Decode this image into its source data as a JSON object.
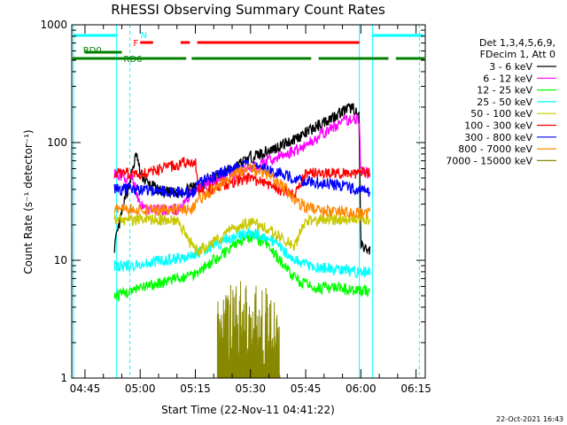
{
  "chart_data": {
    "type": "line",
    "title": "RHESSI Observing Summary Count Rates",
    "xlabel": "Start Time (22-Nov-11 04:41:22)",
    "ylabel": "Count Rate (s⁻¹ detector⁻¹)",
    "yscale": "log",
    "ylim": [
      1,
      1000
    ],
    "xlim_minutes": [
      41.4,
      137.5
    ],
    "x_ticks": [
      {
        "label": "04:45",
        "t": 45
      },
      {
        "label": "05:00",
        "t": 60
      },
      {
        "label": "05:15",
        "t": 75
      },
      {
        "label": "05:30",
        "t": 90
      },
      {
        "label": "05:45",
        "t": 105
      },
      {
        "label": "06:00",
        "t": 120
      },
      {
        "label": "06:15",
        "t": 135
      }
    ],
    "y_ticks": [
      {
        "label": "1",
        "v": 1
      },
      {
        "label": "10",
        "v": 10
      },
      {
        "label": "100",
        "v": 100
      },
      {
        "label": "1000",
        "v": 1000
      }
    ],
    "legend_header": [
      "Det 1,3,4,5,6,9,",
      "FDecim 1, Att 0"
    ],
    "series": [
      {
        "name": "3 - 6 keV",
        "color": "#000000",
        "values": [
          [
            53,
            13
          ],
          [
            55,
            25
          ],
          [
            58,
            60
          ],
          [
            59,
            80
          ],
          [
            60,
            55
          ],
          [
            62,
            45
          ],
          [
            66,
            38
          ],
          [
            70,
            37
          ],
          [
            75,
            42
          ],
          [
            80,
            50
          ],
          [
            85,
            60
          ],
          [
            90,
            75
          ],
          [
            95,
            85
          ],
          [
            100,
            100
          ],
          [
            105,
            120
          ],
          [
            110,
            150
          ],
          [
            115,
            185
          ],
          [
            118,
            200
          ],
          [
            119.5,
            160
          ],
          [
            120,
            13
          ],
          [
            122.5,
            12
          ]
        ]
      },
      {
        "name": "6 - 12 keV",
        "color": "#ff00ff",
        "values": [
          [
            53,
            55
          ],
          [
            58,
            48
          ],
          [
            60,
            30
          ],
          [
            62,
            27
          ],
          [
            66,
            27
          ],
          [
            70,
            27
          ],
          [
            72,
            30
          ],
          [
            75,
            40
          ],
          [
            78,
            45
          ],
          [
            82,
            50
          ],
          [
            86,
            55
          ],
          [
            90,
            60
          ],
          [
            95,
            70
          ],
          [
            100,
            80
          ],
          [
            105,
            95
          ],
          [
            110,
            120
          ],
          [
            115,
            150
          ],
          [
            118,
            160
          ],
          [
            119.5,
            160
          ],
          [
            120,
            55
          ],
          [
            122.5,
            55
          ]
        ]
      },
      {
        "name": "12 - 25 keV",
        "color": "#00ff00",
        "values": [
          [
            53,
            5
          ],
          [
            58,
            5.5
          ],
          [
            62,
            6
          ],
          [
            66,
            6.5
          ],
          [
            70,
            7
          ],
          [
            74,
            7.5
          ],
          [
            78,
            9
          ],
          [
            82,
            11
          ],
          [
            86,
            14
          ],
          [
            90,
            16
          ],
          [
            94,
            14
          ],
          [
            98,
            10
          ],
          [
            102,
            7
          ],
          [
            106,
            6
          ],
          [
            110,
            5.8
          ],
          [
            114,
            5.8
          ],
          [
            118,
            5.5
          ],
          [
            122.5,
            5.5
          ]
        ]
      },
      {
        "name": "25 - 50 keV",
        "color": "#00ffff",
        "values": [
          [
            53,
            9
          ],
          [
            58,
            9
          ],
          [
            62,
            9.5
          ],
          [
            66,
            10
          ],
          [
            70,
            10.5
          ],
          [
            74,
            11
          ],
          [
            78,
            12.5
          ],
          [
            82,
            14
          ],
          [
            86,
            16
          ],
          [
            90,
            17
          ],
          [
            94,
            16
          ],
          [
            98,
            13
          ],
          [
            102,
            10
          ],
          [
            106,
            9
          ],
          [
            110,
            8.5
          ],
          [
            114,
            8.5
          ],
          [
            118,
            8
          ],
          [
            122.5,
            8
          ]
        ]
      },
      {
        "name": "50 - 100 keV",
        "color": "#c8c800",
        "values": [
          [
            53,
            22
          ],
          [
            58,
            22
          ],
          [
            62,
            22
          ],
          [
            66,
            22
          ],
          [
            70,
            22
          ],
          [
            75,
            12
          ],
          [
            78,
            13
          ],
          [
            82,
            16
          ],
          [
            86,
            19
          ],
          [
            90,
            21
          ],
          [
            94,
            19
          ],
          [
            98,
            16
          ],
          [
            102,
            13
          ],
          [
            105,
            22
          ],
          [
            110,
            22
          ],
          [
            115,
            22
          ],
          [
            118,
            22
          ],
          [
            122.5,
            22
          ]
        ]
      },
      {
        "name": "100 - 300 keV",
        "color": "#ff0000",
        "values": [
          [
            53,
            55
          ],
          [
            58,
            55
          ],
          [
            60,
            55
          ],
          [
            62,
            55
          ],
          [
            66,
            60
          ],
          [
            70,
            65
          ],
          [
            75,
            70
          ],
          [
            76,
            38
          ],
          [
            79,
            40
          ],
          [
            83,
            44
          ],
          [
            87,
            48
          ],
          [
            90,
            50
          ],
          [
            94,
            45
          ],
          [
            98,
            40
          ],
          [
            102,
            35
          ],
          [
            105,
            55
          ],
          [
            110,
            55
          ],
          [
            115,
            55
          ],
          [
            118,
            55
          ],
          [
            122.5,
            55
          ]
        ]
      },
      {
        "name": "300 - 800 keV",
        "color": "#0000ff",
        "values": [
          [
            53,
            40
          ],
          [
            58,
            40
          ],
          [
            62,
            39
          ],
          [
            66,
            39
          ],
          [
            70,
            38
          ],
          [
            74,
            37
          ],
          [
            76,
            45
          ],
          [
            79,
            50
          ],
          [
            83,
            57
          ],
          [
            87,
            62
          ],
          [
            90,
            65
          ],
          [
            94,
            60
          ],
          [
            98,
            55
          ],
          [
            102,
            50
          ],
          [
            105,
            47
          ],
          [
            110,
            45
          ],
          [
            115,
            43
          ],
          [
            118,
            41
          ],
          [
            122.5,
            38
          ]
        ]
      },
      {
        "name": "800 - 7000 keV",
        "color": "#ff8800",
        "values": [
          [
            53,
            27
          ],
          [
            58,
            27
          ],
          [
            62,
            27
          ],
          [
            66,
            27
          ],
          [
            70,
            27
          ],
          [
            74,
            27
          ],
          [
            76,
            33
          ],
          [
            79,
            38
          ],
          [
            83,
            48
          ],
          [
            87,
            56
          ],
          [
            90,
            60
          ],
          [
            94,
            55
          ],
          [
            98,
            45
          ],
          [
            102,
            33
          ],
          [
            105,
            28
          ],
          [
            110,
            26
          ],
          [
            115,
            26
          ],
          [
            118,
            25
          ],
          [
            122.5,
            25
          ]
        ]
      },
      {
        "name": "7000 - 15000 keV",
        "color": "#888800",
        "values": [
          [
            81,
            2
          ],
          [
            83,
            2.5
          ],
          [
            85,
            2.9
          ],
          [
            88,
            3
          ],
          [
            90,
            3
          ],
          [
            93,
            2.9
          ],
          [
            96,
            2.5
          ],
          [
            98,
            2
          ]
        ]
      }
    ],
    "segment_bars": [
      {
        "label": "N",
        "color": "#00ffff",
        "label_t": 61
      },
      {
        "label": "F",
        "color": "#ff0000",
        "label_t": 58.8
      },
      {
        "label": "RD0",
        "color": "#008000",
        "label_t": 47
      },
      {
        "label": "RD6",
        "color": "#008000",
        "label_t": 58
      }
    ],
    "vertical_markers": [
      {
        "t": 41.9,
        "color": "#00ffff",
        "style": "solid"
      },
      {
        "t": 53.6,
        "color": "#00ffff",
        "style": "solid"
      },
      {
        "t": 57.2,
        "color": "#00ffff",
        "style": "dashed"
      },
      {
        "t": 119.6,
        "color": "#00ffff",
        "style": "solid"
      },
      {
        "t": 123.2,
        "color": "#00ffff",
        "style": "solid"
      },
      {
        "t": 135.9,
        "color": "#00ffff",
        "style": "dashed"
      }
    ],
    "timestamp": "22-Oct-2021 16:43"
  }
}
